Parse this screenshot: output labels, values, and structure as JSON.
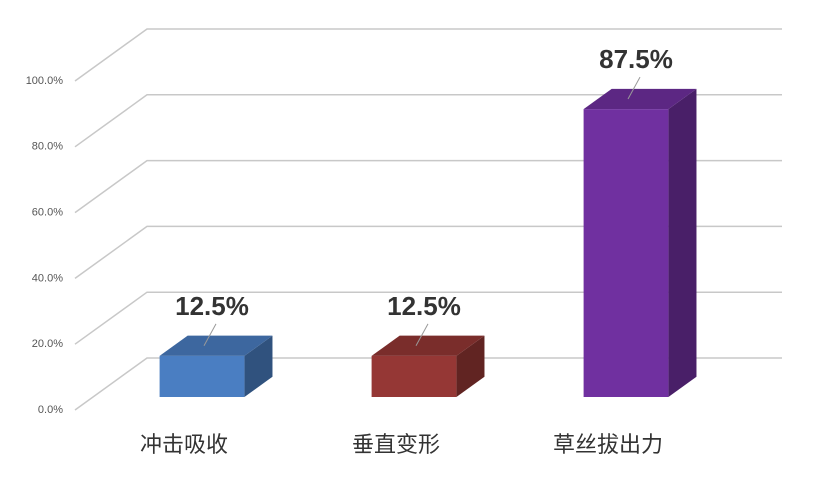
{
  "chart_data": {
    "type": "bar3d",
    "categories": [
      "冲击吸收",
      "垂直变形",
      "草丝拔出力"
    ],
    "values": [
      12.5,
      12.5,
      87.5
    ],
    "value_labels": [
      "12.5%",
      "12.5%",
      "87.5%"
    ],
    "colors": [
      "#4a7ec2",
      "#953735",
      "#7030a0"
    ],
    "ylim": [
      0,
      100
    ],
    "yticks": [
      {
        "value": 0,
        "label": "0.0%"
      },
      {
        "value": 20,
        "label": "20.0%"
      },
      {
        "value": 40,
        "label": "40.0%"
      },
      {
        "value": 60,
        "label": "60.0%"
      },
      {
        "value": 80,
        "label": "80.0%"
      },
      {
        "value": 100,
        "label": "100.0%"
      }
    ],
    "grid": true
  }
}
